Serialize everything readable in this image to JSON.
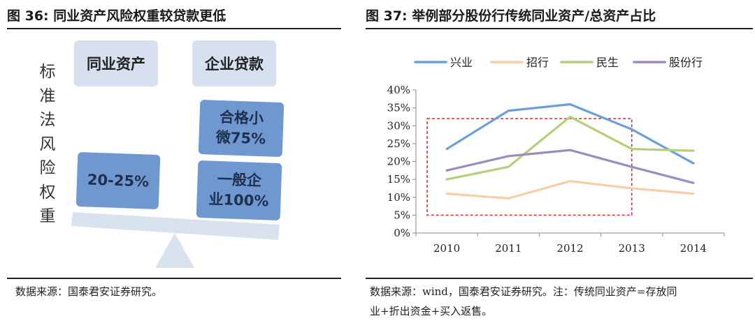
{
  "left": {
    "title": "图 36: 同业资产风险权重较贷款更低",
    "source": "数据来源：国泰君安证券研究。",
    "vertical_label": [
      "标",
      "准",
      "法",
      "风",
      "险",
      "权",
      "重"
    ],
    "boxes": {
      "interbank": "同业资产",
      "corp_loan": "企业贷款",
      "interbank_weight": "20-25%",
      "small_micro": [
        "合格小",
        "微75%"
      ],
      "general_corp": [
        "一般企",
        "业100%"
      ]
    },
    "colors": {
      "light": "#d6e0ee",
      "dark": "#6f98d1",
      "beam": "#d9e3f0"
    }
  },
  "right": {
    "title": "图 37: 举例部分股份行传统同业资产/总资产占比",
    "source_lines": [
      "数据来源：wind，国泰君安证券研究。注：传统同业资产=存放同",
      "业+折出资金+买入返售。"
    ]
  },
  "chart_data": {
    "type": "line",
    "x": [
      "2010",
      "2011",
      "2012",
      "2013",
      "2014"
    ],
    "ylim": [
      0,
      40
    ],
    "yticks": [
      "0%",
      "5%",
      "10%",
      "15%",
      "20%",
      "25%",
      "30%",
      "35%",
      "40%"
    ],
    "legend_position": "top",
    "grid": false,
    "series": [
      {
        "name": "兴业",
        "color": "#6a9fd8",
        "values": [
          23.5,
          34.2,
          36.0,
          29.0,
          19.5
        ]
      },
      {
        "name": "招行",
        "color": "#f6cfa6",
        "values": [
          11.0,
          9.7,
          14.5,
          12.5,
          11.0
        ]
      },
      {
        "name": "民生",
        "color": "#b3cf7a",
        "values": [
          15.0,
          18.5,
          32.5,
          23.5,
          23.0
        ]
      },
      {
        "name": "股份行",
        "color": "#9c8ac0",
        "values": [
          17.5,
          21.5,
          23.2,
          18.5,
          14.0
        ]
      }
    ],
    "highlight": {
      "x_from": 2010,
      "x_to": 2013,
      "y_from": 5,
      "y_to": 32,
      "color": "#d42a2a"
    }
  }
}
